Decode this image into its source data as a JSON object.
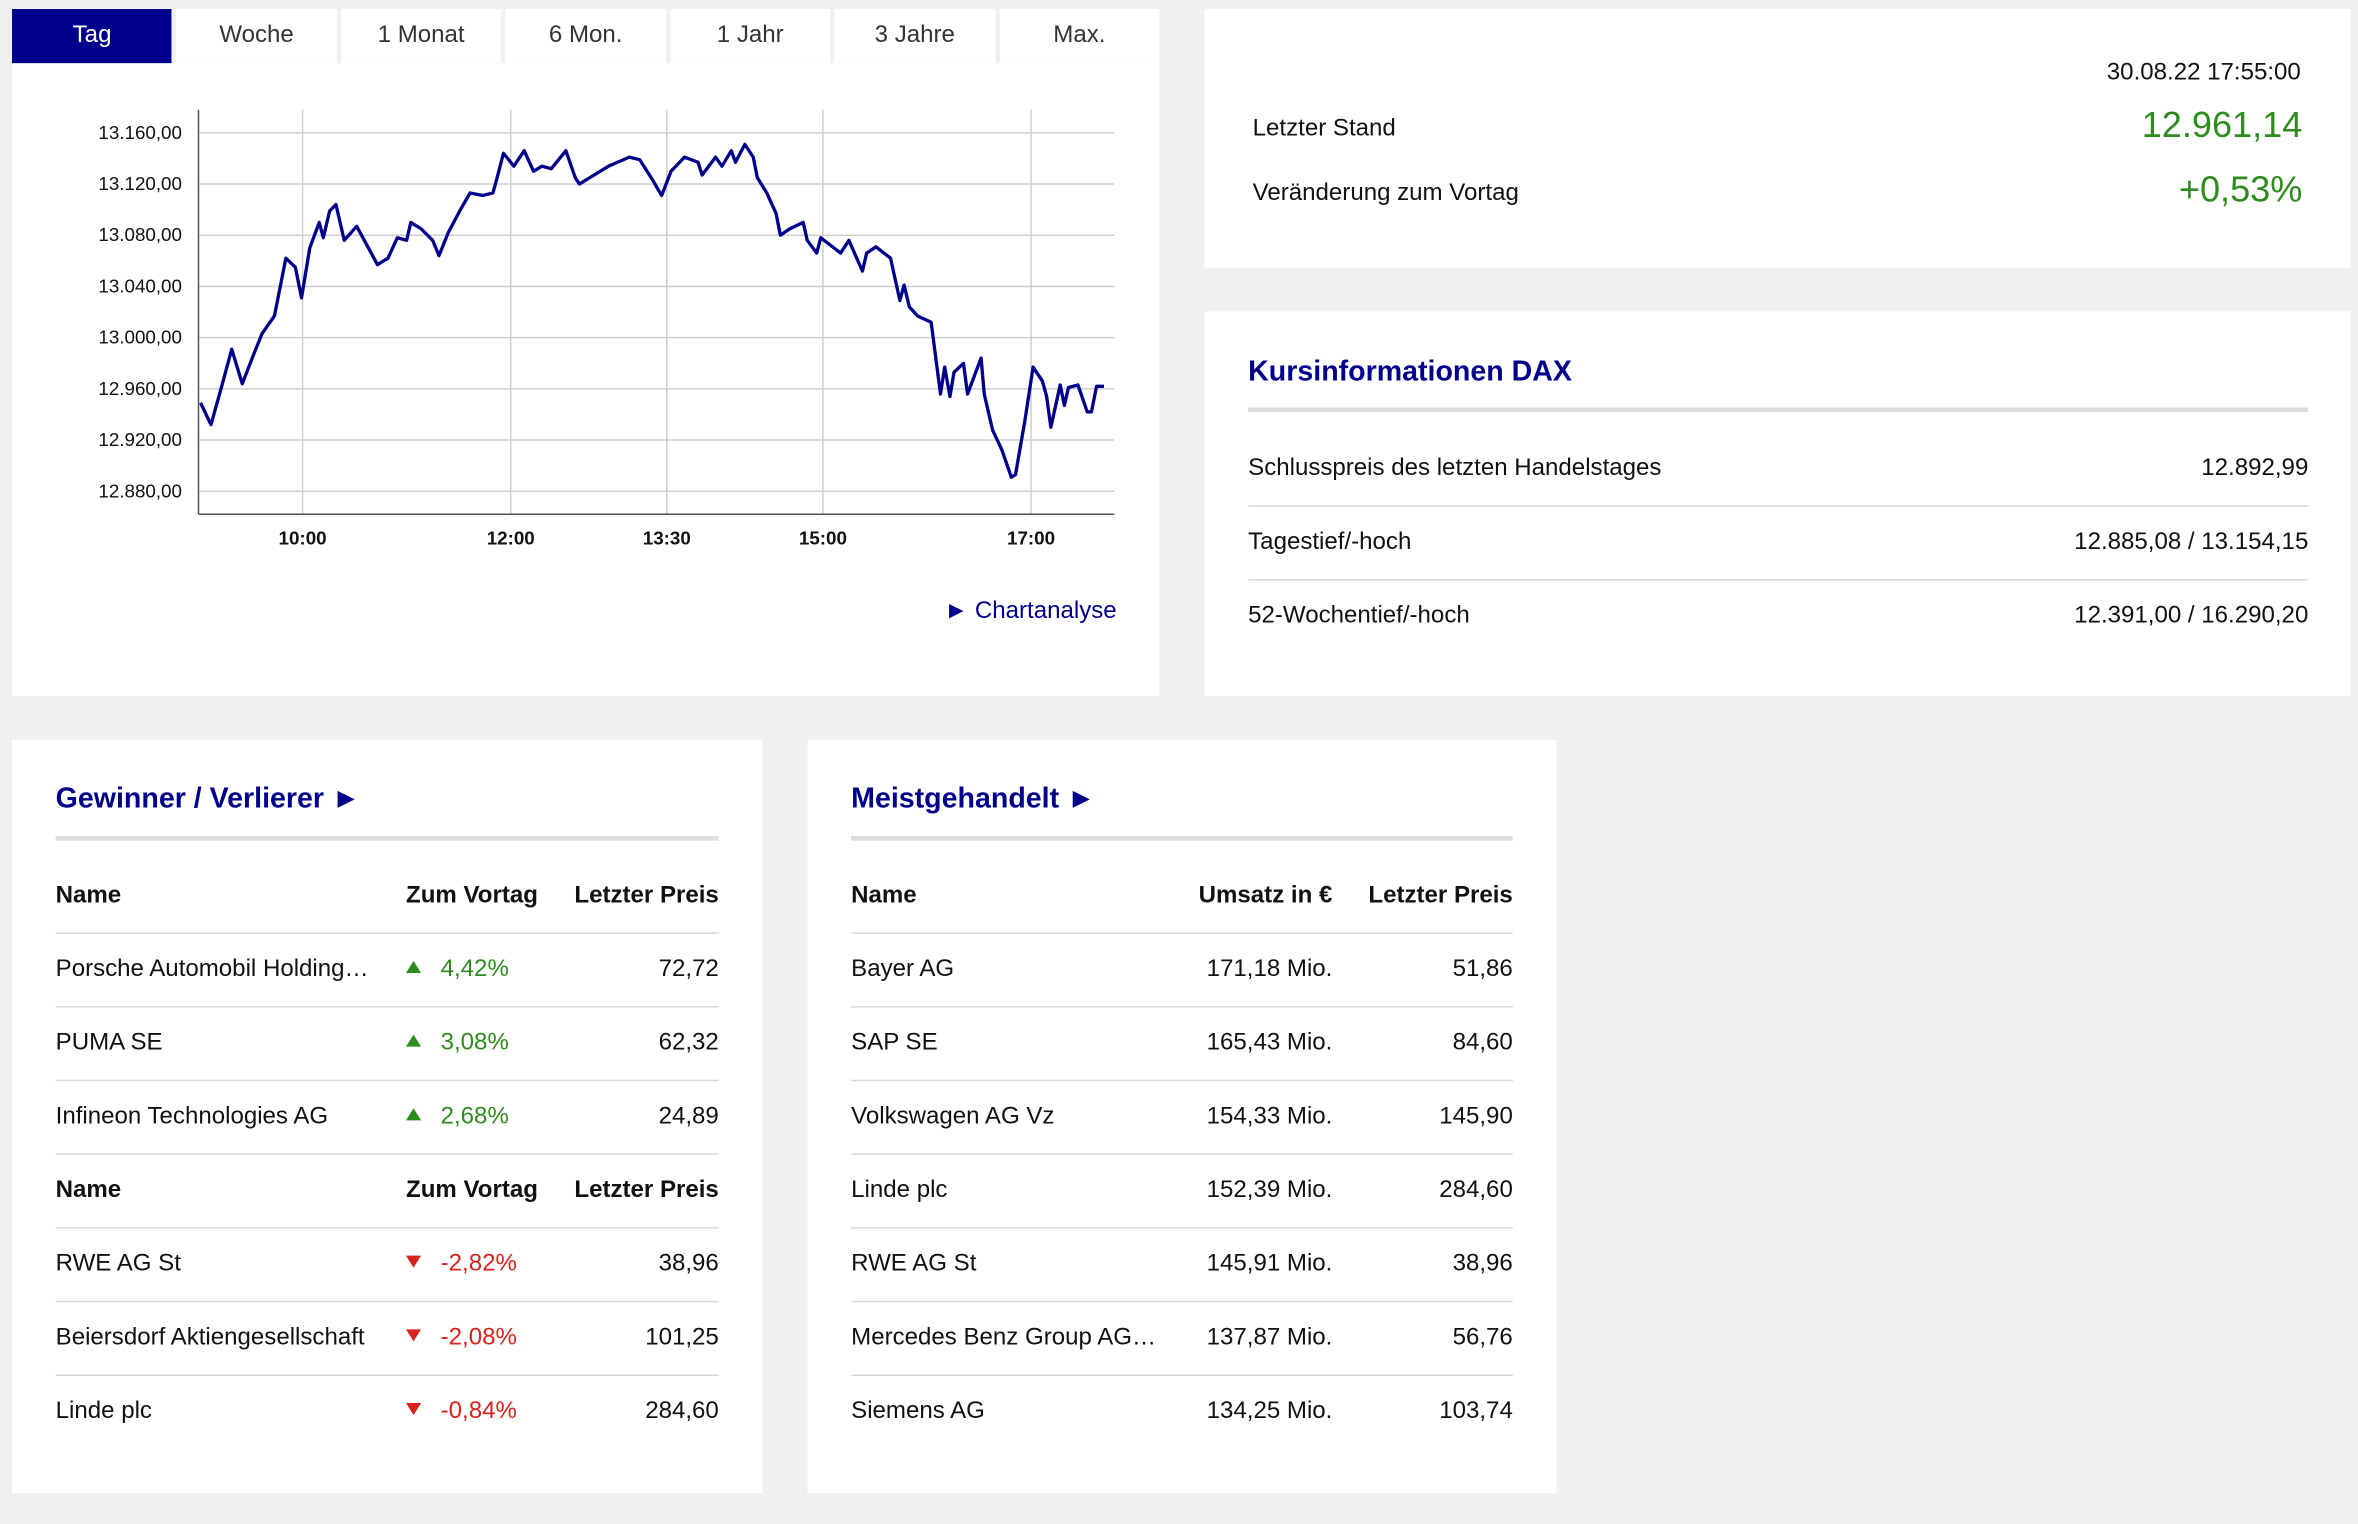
{
  "tabs": [
    "Tag",
    "Woche",
    "1 Monat",
    "6 Mon.",
    "1 Jahr",
    "3 Jahre",
    "Max."
  ],
  "chart_data": {
    "type": "line",
    "color": "#00008b",
    "grid": true,
    "xlim": [
      9,
      17.8
    ],
    "xticks": [
      {
        "value": 10,
        "label": "10:00"
      },
      {
        "value": 12,
        "label": "12:00"
      },
      {
        "value": 13.5,
        "label": "13:30"
      },
      {
        "value": 15,
        "label": "15:00"
      },
      {
        "value": 17,
        "label": "17:00"
      }
    ],
    "ylim": [
      12862,
      13178
    ],
    "yticks": [
      {
        "value": 12880,
        "label": "12.880,00"
      },
      {
        "value": 12920,
        "label": "12.920,00"
      },
      {
        "value": 12960,
        "label": "12.960,00"
      },
      {
        "value": 13000,
        "label": "13.000,00"
      },
      {
        "value": 13040,
        "label": "13.040,00"
      },
      {
        "value": 13080,
        "label": "13.080,00"
      },
      {
        "value": 13120,
        "label": "13.120,00"
      },
      {
        "value": 13160,
        "label": "13.160,00"
      }
    ],
    "x": [
      9.02,
      9.12,
      9.22,
      9.32,
      9.42,
      9.53,
      9.61,
      9.73,
      9.84,
      9.93,
      9.99,
      10.07,
      10.16,
      10.2,
      10.26,
      10.32,
      10.4,
      10.52,
      10.62,
      10.72,
      10.82,
      10.91,
      11.0,
      11.04,
      11.14,
      11.25,
      11.31,
      11.4,
      11.51,
      11.61,
      11.73,
      11.83,
      11.87,
      11.93,
      12.03,
      12.13,
      12.22,
      12.3,
      12.39,
      12.53,
      12.62,
      12.66,
      12.76,
      12.94,
      13.14,
      13.24,
      13.35,
      13.45,
      13.54,
      13.67,
      13.8,
      13.84,
      13.97,
      14.03,
      14.12,
      14.16,
      14.25,
      14.33,
      14.37,
      14.46,
      14.55,
      14.59,
      14.68,
      14.81,
      14.85,
      14.94,
      14.98,
      15.17,
      15.25,
      15.38,
      15.42,
      15.51,
      15.65,
      15.74,
      15.78,
      15.83,
      15.91,
      16.04,
      16.13,
      16.17,
      16.22,
      16.26,
      16.35,
      16.39,
      16.52,
      16.55,
      16.63,
      16.72,
      16.81,
      16.85,
      16.94,
      17.02,
      17.11,
      17.15,
      17.19,
      17.28,
      17.32,
      17.36,
      17.45,
      17.54,
      17.58,
      17.63,
      17.7
    ],
    "values": [
      12949,
      12932,
      12961,
      12991,
      12964,
      12987,
      13003,
      13017,
      13062,
      13055,
      13031,
      13070,
      13090,
      13078,
      13099,
      13104,
      13076,
      13087,
      13072,
      13057,
      13062,
      13078,
      13076,
      13090,
      13085,
      13076,
      13064,
      13082,
      13099,
      13113,
      13111,
      13113,
      13125,
      13144,
      13134,
      13146,
      13130,
      13134,
      13132,
      13146,
      13125,
      13120,
      13125,
      13134,
      13141,
      13139,
      13125,
      13111,
      13130,
      13141,
      13137,
      13127,
      13141,
      13134,
      13146,
      13137,
      13151,
      13141,
      13125,
      13113,
      13097,
      13080,
      13085,
      13090,
      13076,
      13066,
      13078,
      13066,
      13076,
      13052,
      13066,
      13071,
      13062,
      13029,
      13041,
      13024,
      13017,
      13012,
      12956,
      12977,
      12954,
      12973,
      12980,
      12956,
      12984,
      12956,
      12928,
      12912,
      12891,
      12893,
      12935,
      12977,
      12966,
      12954,
      12930,
      12963,
      12947,
      12961,
      12963,
      12942,
      12942,
      12962,
      12962
    ]
  },
  "chart_link": "Chartanalyse",
  "quote": {
    "timestamp": "30.08.22 17:55:00",
    "rows": [
      [
        "Letzter Stand",
        "12.961,14"
      ],
      [
        "Veränderung zum Vortag",
        "+0,53%"
      ]
    ]
  },
  "kursinfo": {
    "title": "Kursinformationen DAX",
    "rows": [
      [
        "Schlusspreis des letzten Handelstages",
        "12.892,99"
      ],
      [
        "Tagestief/-hoch",
        "12.885,08 / 13.154,15"
      ],
      [
        "52-Wochentief/-hoch",
        "12.391,00 / 16.290,20"
      ]
    ]
  },
  "gainers_losers": {
    "title": "Gewinner / Verlierer",
    "gainers": {
      "header": [
        "Name",
        "Zum Vortag",
        "Letzter Preis"
      ],
      "rows": [
        [
          "Porsche Automobil Holding…",
          "4,42%",
          "72,72"
        ],
        [
          "PUMA SE",
          "3,08%",
          "62,32"
        ],
        [
          "Infineon Technologies AG",
          "2,68%",
          "24,89"
        ]
      ]
    },
    "losers": {
      "header": [
        "Name",
        "Zum Vortag",
        "Letzter Preis"
      ],
      "rows": [
        [
          "RWE AG St",
          "-2,82%",
          "38,96"
        ],
        [
          "Beiersdorf Aktiengesellschaft",
          "-2,08%",
          "101,25"
        ],
        [
          "Linde plc",
          "-0,84%",
          "284,60"
        ]
      ]
    }
  },
  "most_traded": {
    "title": "Meistgehandelt",
    "header": [
      "Name",
      "Umsatz in €",
      "Letzter Preis"
    ],
    "rows": [
      [
        "Bayer AG",
        "171,18 Mio.",
        "51,86"
      ],
      [
        "SAP SE",
        "165,43 Mio.",
        "84,60"
      ],
      [
        "Volkswagen AG Vz",
        "154,33 Mio.",
        "145,90"
      ],
      [
        "Linde plc",
        "152,39 Mio.",
        "284,60"
      ],
      [
        "RWE AG St",
        "145,91 Mio.",
        "38,96"
      ],
      [
        "Mercedes Benz Group AG…",
        "137,87 Mio.",
        "56,76"
      ],
      [
        "Siemens AG",
        "134,25 Mio.",
        "103,74"
      ]
    ]
  }
}
